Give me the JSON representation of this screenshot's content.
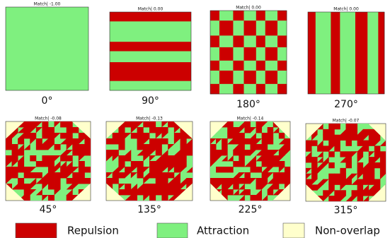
{
  "panels": [
    {
      "title": "Match| -1.00",
      "label": "0°"
    },
    {
      "title": "Match| 0.00",
      "label": "90°"
    },
    {
      "title": "Match| 0.00",
      "label": "180°"
    },
    {
      "title": "Match| 0.00",
      "label": "270°"
    },
    {
      "title": "Match| -0.08",
      "label": "45°"
    },
    {
      "title": "Match| -0.13",
      "label": "135°"
    },
    {
      "title": "Match| -0.14",
      "label": "225°"
    },
    {
      "title": "Match| -0.07",
      "label": "315°"
    }
  ],
  "legend": [
    {
      "label": "Repulsion",
      "color": "#cc0000"
    },
    {
      "label": "Attraction",
      "color": "#7ff07f"
    },
    {
      "label": "Non-overlap",
      "color": "#ffffcc"
    }
  ]
}
